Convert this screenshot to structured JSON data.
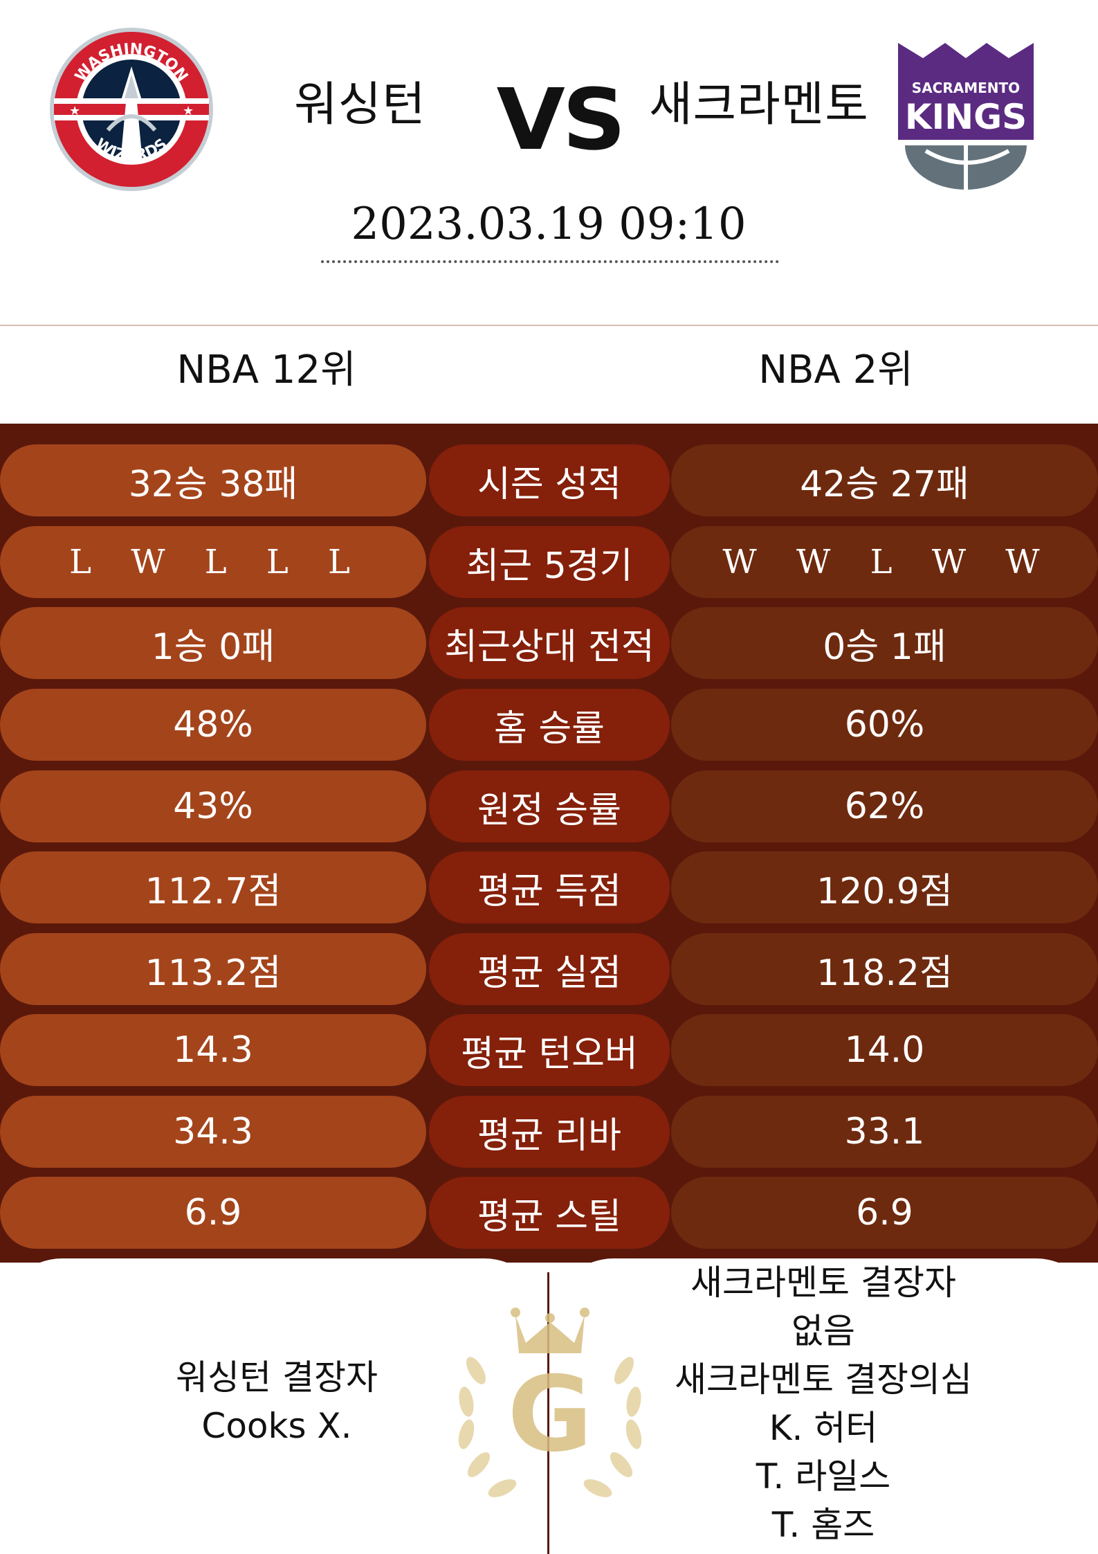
{
  "match": {
    "home_team": "워싱턴",
    "away_team": "새크라멘토",
    "vs": "VS",
    "datetime": "2023.03.19  09:10"
  },
  "logos": {
    "home": {
      "text_top": "WASHINGTON",
      "text_bottom": "WIZARDS"
    },
    "away": {
      "text_top": "SACRAMENTO",
      "text_bottom": "KINGS"
    }
  },
  "ranks": {
    "home": "NBA 12위",
    "away": "NBA 2위"
  },
  "stats": [
    {
      "label": "시즌 성적",
      "home": "32승 38패",
      "away": "42승 27패"
    },
    {
      "label": "최근 5경기",
      "home": "L W L L L",
      "away": "W W L W W"
    },
    {
      "label": "최근상대 전적",
      "home": "1승 0패",
      "away": "0승 1패"
    },
    {
      "label": "홈 승률",
      "home": "48%",
      "away": "60%"
    },
    {
      "label": "원정 승률",
      "home": "43%",
      "away": "62%"
    },
    {
      "label": "평균 득점",
      "home": "112.7점",
      "away": "120.9점"
    },
    {
      "label": "평균 실점",
      "home": "113.2점",
      "away": "118.2점"
    },
    {
      "label": "평균 턴오버",
      "home": "14.3",
      "away": "14.0"
    },
    {
      "label": "평균 리바",
      "home": "34.3",
      "away": "33.1"
    },
    {
      "label": "평균 스틸",
      "home": "6.9",
      "away": "6.9"
    }
  ],
  "injuries": {
    "home": [
      "워싱턴 결장자",
      "Cooks X."
    ],
    "away": [
      "새크라멘토 결장자",
      "없음",
      "새크라멘토 결장의심",
      "K. 허터",
      "T. 라일스",
      "T. 홈즈"
    ]
  },
  "crest_letter": "G",
  "colors": {
    "board_bg": "#5a180b",
    "home_pill": "#a4441b",
    "label_pill": "#85200a",
    "away_pill": "#6e2a0f",
    "wizards_navy": "#0b2240",
    "wizards_red": "#d22030",
    "kings_purple": "#5b2b82",
    "kings_gray": "#63727a",
    "gold": "#d8bf82"
  }
}
